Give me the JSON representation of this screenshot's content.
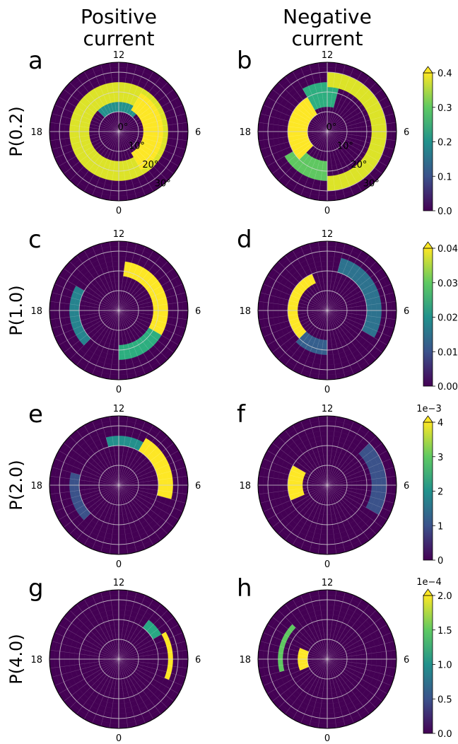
{
  "column_titles": [
    "Positive\ncurrent",
    "Negative\ncurrent"
  ],
  "row_labels": [
    "P(0.2)",
    "P(1.0)",
    "P(2.0)",
    "P(4.0)"
  ],
  "panel_letters": [
    "a",
    "b",
    "c",
    "d",
    "e",
    "f",
    "g",
    "h"
  ],
  "mlt_labels": {
    "top": "12",
    "right": "6",
    "bottom": "0",
    "left": "18"
  },
  "colat_labels": [
    "0°",
    "10°",
    "20°",
    "30°"
  ],
  "colormap": {
    "name": "viridis",
    "low": "#440154",
    "mid": "#21918c",
    "high": "#fde725"
  },
  "colorbars": [
    {
      "ticks": [
        "0.0",
        "0.1",
        "0.2",
        "0.3",
        "0.4"
      ],
      "min": 0,
      "max": 0.4,
      "offset_text": "",
      "extend": "max"
    },
    {
      "ticks": [
        "0.00",
        "0.01",
        "0.02",
        "0.03",
        "0.04"
      ],
      "min": 0,
      "max": 0.04,
      "offset_text": "",
      "extend": "max"
    },
    {
      "ticks": [
        "0",
        "1",
        "2",
        "3",
        "4"
      ],
      "min": 0,
      "max": 4,
      "offset_text": "1e−3",
      "extend": "max"
    },
    {
      "ticks": [
        "0.0",
        "0.5",
        "1.0",
        "1.5",
        "2.0"
      ],
      "min": 0,
      "max": 2.0,
      "offset_text": "1e−4",
      "extend": "max"
    }
  ],
  "chart_data": [
    {
      "panel": "a",
      "type": "heatmap",
      "projection": "polar (MLT vs colatitude)",
      "row": "P(0.2)",
      "column": "Positive current",
      "vmax": 0.4,
      "r_range_deg": [
        0,
        35
      ],
      "bands": [
        {
          "mlt_from": 0,
          "mlt_to": 24,
          "colat_from": 15,
          "colat_to": 25,
          "value": 0.38
        },
        {
          "mlt_from": 2,
          "mlt_to": 10,
          "colat_from": 17,
          "colat_to": 24,
          "value": 0.36
        },
        {
          "mlt_from": 14,
          "mlt_to": 22,
          "colat_from": 13,
          "colat_to": 23,
          "value": 0.4
        },
        {
          "mlt_from": 9,
          "mlt_to": 15,
          "colat_from": 10,
          "colat_to": 20,
          "value": 0.2
        }
      ]
    },
    {
      "panel": "b",
      "type": "heatmap",
      "projection": "polar (MLT vs colatitude)",
      "row": "P(0.2)",
      "column": "Negative current",
      "vmax": 0.4,
      "r_range_deg": [
        0,
        35
      ],
      "bands": [
        {
          "mlt_from": 12,
          "mlt_to": 24,
          "colat_from": 22,
          "colat_to": 30,
          "value": 0.38
        },
        {
          "mlt_from": 3,
          "mlt_to": 10,
          "colat_from": 10,
          "colat_to": 20,
          "value": 0.4
        },
        {
          "mlt_from": 0,
          "mlt_to": 4,
          "colat_from": 15,
          "colat_to": 24,
          "value": 0.3
        },
        {
          "mlt_from": 10,
          "mlt_to": 13,
          "colat_from": 12,
          "colat_to": 26,
          "value": 0.25
        }
      ]
    },
    {
      "panel": "c",
      "type": "heatmap",
      "projection": "polar (MLT vs colatitude)",
      "row": "P(1.0)",
      "column": "Positive current",
      "vmax": 0.04,
      "r_range_deg": [
        0,
        35
      ],
      "bands": [
        {
          "mlt_from": 12.5,
          "mlt_to": 20,
          "colat_from": 17,
          "colat_to": 25,
          "value": 0.04
        },
        {
          "mlt_from": 20,
          "mlt_to": 24,
          "colat_from": 18,
          "colat_to": 24,
          "value": 0.025
        },
        {
          "mlt_from": 3,
          "mlt_to": 8,
          "colat_from": 19,
          "colat_to": 24,
          "value": 0.018
        }
      ]
    },
    {
      "panel": "d",
      "type": "heatmap",
      "projection": "polar (MLT vs colatitude)",
      "row": "P(1.0)",
      "column": "Negative current",
      "vmax": 0.04,
      "r_range_deg": [
        0,
        35
      ],
      "bands": [
        {
          "mlt_from": 3,
          "mlt_to": 10.5,
          "colat_from": 14,
          "colat_to": 21,
          "value": 0.04
        },
        {
          "mlt_from": 13,
          "mlt_to": 20,
          "colat_from": 20,
          "colat_to": 28,
          "value": 0.015
        },
        {
          "mlt_from": 0,
          "mlt_to": 3,
          "colat_from": 16,
          "colat_to": 22,
          "value": 0.012
        }
      ]
    },
    {
      "panel": "e",
      "type": "heatmap",
      "projection": "polar (MLT vs colatitude)",
      "row": "P(2.0)",
      "column": "Positive current",
      "vmax": 0.004,
      "r_range_deg": [
        0,
        35
      ],
      "bands": [
        {
          "mlt_from": 14,
          "mlt_to": 19,
          "colat_from": 20,
          "colat_to": 28,
          "value": 0.004
        },
        {
          "mlt_from": 11,
          "mlt_to": 14,
          "colat_from": 19,
          "colat_to": 25,
          "value": 0.002
        },
        {
          "mlt_from": 3,
          "mlt_to": 7,
          "colat_from": 20,
          "colat_to": 25,
          "value": 0.001
        }
      ]
    },
    {
      "panel": "f",
      "type": "heatmap",
      "projection": "polar (MLT vs colatitude)",
      "row": "P(2.0)",
      "column": "Negative current",
      "vmax": 0.004,
      "r_range_deg": [
        0,
        35
      ],
      "bands": [
        {
          "mlt_from": 4.5,
          "mlt_to": 8,
          "colat_from": 13,
          "colat_to": 20,
          "value": 0.004
        },
        {
          "mlt_from": 15,
          "mlt_to": 20,
          "colat_from": 22,
          "colat_to": 30,
          "value": 0.001
        }
      ]
    },
    {
      "panel": "g",
      "type": "heatmap",
      "projection": "polar (MLT vs colatitude)",
      "row": "P(4.0)",
      "column": "Positive current",
      "vmax": 0.0002,
      "r_range_deg": [
        0,
        35
      ],
      "bands": [
        {
          "mlt_from": 16,
          "mlt_to": 19.5,
          "colat_from": 24,
          "colat_to": 28,
          "value": 0.0002
        },
        {
          "mlt_from": 14.5,
          "mlt_to": 16,
          "colat_from": 21,
          "colat_to": 25,
          "value": 0.00012
        }
      ]
    },
    {
      "panel": "h",
      "type": "heatmap",
      "projection": "polar (MLT vs colatitude)",
      "row": "P(4.0)",
      "column": "Negative current",
      "vmax": 0.0002,
      "r_range_deg": [
        0,
        35
      ],
      "bands": [
        {
          "mlt_from": 4.5,
          "mlt_to": 7.5,
          "colat_from": 10,
          "colat_to": 14,
          "value": 0.0002
        },
        {
          "mlt_from": 5,
          "mlt_to": 9,
          "colat_from": 22,
          "colat_to": 25,
          "value": 0.00015
        }
      ]
    }
  ]
}
